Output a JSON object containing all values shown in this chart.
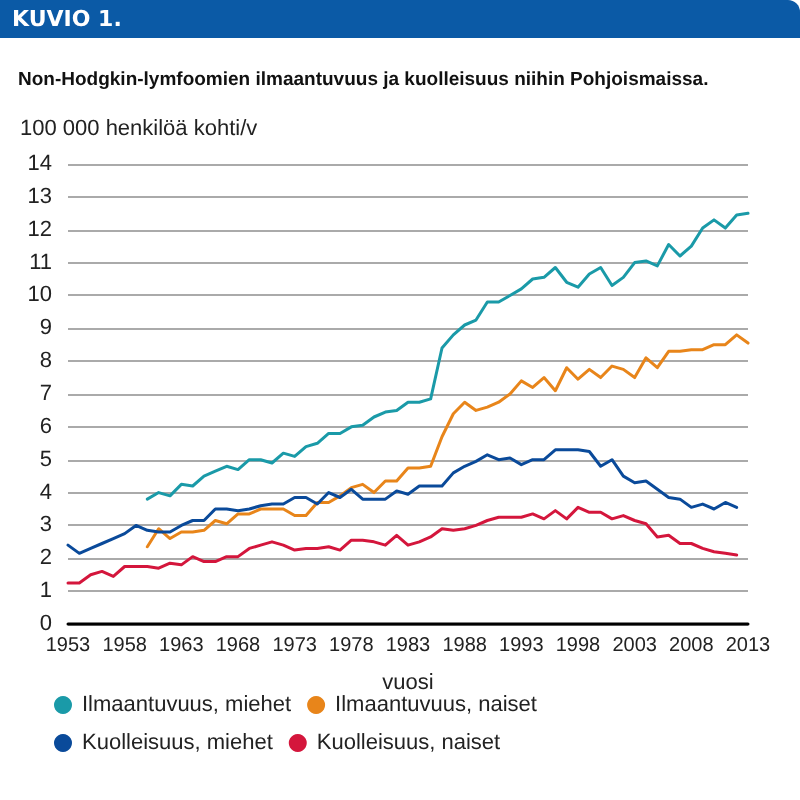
{
  "chart_data": {
    "type": "line",
    "title": "Non-Hodgkin-lymfoomien ilmaantuvuus ja kuolleisuus niihin Pohjoismaissa.",
    "annotations": [
      "KUVIO 1."
    ],
    "xlabel": "vuosi",
    "ylabel": "100 000 henkilöä kohti/v",
    "x": [
      1953,
      1954,
      1955,
      1956,
      1957,
      1958,
      1959,
      1960,
      1961,
      1962,
      1963,
      1964,
      1965,
      1966,
      1967,
      1968,
      1969,
      1970,
      1971,
      1972,
      1973,
      1974,
      1975,
      1976,
      1977,
      1978,
      1979,
      1980,
      1981,
      1982,
      1983,
      1984,
      1985,
      1986,
      1987,
      1988,
      1989,
      1990,
      1991,
      1992,
      1993,
      1994,
      1995,
      1996,
      1997,
      1998,
      1999,
      2000,
      2001,
      2002,
      2003,
      2004,
      2005,
      2006,
      2007,
      2008,
      2009,
      2010,
      2011,
      2012,
      2013
    ],
    "series": [
      {
        "name": "Ilmaantuvuus, miehet",
        "color": "#1a9aa8",
        "values": [
          null,
          null,
          null,
          null,
          null,
          null,
          null,
          3.8,
          4.0,
          3.9,
          4.25,
          4.2,
          4.5,
          4.65,
          4.8,
          4.7,
          5.0,
          5.0,
          4.9,
          5.2,
          5.1,
          5.4,
          5.5,
          5.8,
          5.8,
          6.0,
          6.05,
          6.3,
          6.45,
          6.5,
          6.75,
          6.75,
          6.85,
          8.4,
          8.8,
          9.1,
          9.25,
          9.8,
          9.8,
          10.0,
          10.2,
          10.5,
          10.55,
          10.85,
          10.4,
          10.25,
          10.65,
          10.85,
          10.3,
          10.55,
          11.0,
          11.05,
          10.9,
          11.55,
          11.2,
          11.5,
          12.05,
          12.3,
          12.05,
          12.45,
          12.5
        ]
      },
      {
        "name": "Ilmaantuvuus, naiset",
        "color": "#e8851a",
        "values": [
          null,
          null,
          null,
          null,
          null,
          null,
          null,
          2.35,
          2.9,
          2.6,
          2.8,
          2.8,
          2.85,
          3.15,
          3.05,
          3.35,
          3.35,
          3.5,
          3.5,
          3.5,
          3.3,
          3.3,
          3.7,
          3.7,
          3.9,
          4.15,
          4.25,
          4.0,
          4.35,
          4.35,
          4.75,
          4.75,
          4.8,
          5.7,
          6.4,
          6.75,
          6.5,
          6.6,
          6.75,
          7.0,
          7.4,
          7.2,
          7.5,
          7.1,
          7.8,
          7.45,
          7.75,
          7.5,
          7.85,
          7.75,
          7.5,
          8.1,
          7.8,
          8.3,
          8.3,
          8.35,
          8.35,
          8.5,
          8.5,
          8.8,
          8.55
        ]
      },
      {
        "name": "Kuolleisuus, miehet",
        "color": "#0a4a9a",
        "values": [
          2.4,
          2.15,
          2.3,
          2.45,
          2.6,
          2.75,
          3.0,
          2.85,
          2.8,
          2.8,
          3.0,
          3.15,
          3.15,
          3.5,
          3.5,
          3.45,
          3.5,
          3.6,
          3.65,
          3.65,
          3.85,
          3.85,
          3.65,
          4.0,
          3.85,
          4.1,
          3.8,
          3.8,
          3.8,
          4.05,
          3.95,
          4.2,
          4.2,
          4.2,
          4.6,
          4.8,
          4.95,
          5.15,
          5.0,
          5.05,
          4.85,
          5.0,
          5.0,
          5.3,
          5.3,
          5.3,
          5.25,
          4.8,
          5.0,
          4.5,
          4.3,
          4.35,
          4.1,
          3.85,
          3.8,
          3.55,
          3.65,
          3.5,
          3.7,
          3.55,
          null
        ]
      },
      {
        "name": "Kuolleisuus, naiset",
        "color": "#d4163c",
        "values": [
          1.25,
          1.25,
          1.5,
          1.6,
          1.45,
          1.75,
          1.75,
          1.75,
          1.7,
          1.85,
          1.8,
          2.05,
          1.9,
          1.9,
          2.05,
          2.05,
          2.3,
          2.4,
          2.5,
          2.4,
          2.25,
          2.3,
          2.3,
          2.35,
          2.25,
          2.55,
          2.55,
          2.5,
          2.4,
          2.7,
          2.4,
          2.5,
          2.65,
          2.9,
          2.85,
          2.9,
          3.0,
          3.15,
          3.25,
          3.25,
          3.25,
          3.35,
          3.2,
          3.45,
          3.2,
          3.55,
          3.4,
          3.4,
          3.2,
          3.3,
          3.15,
          3.05,
          2.65,
          2.7,
          2.45,
          2.45,
          2.3,
          2.2,
          2.15,
          2.1,
          null
        ]
      }
    ],
    "xlim": [
      1953,
      2013
    ],
    "xticks": [
      1953,
      1958,
      1963,
      1968,
      1973,
      1978,
      1983,
      1988,
      1993,
      1998,
      2003,
      2008,
      2013
    ],
    "ylim": [
      0,
      14
    ],
    "yticks": [
      0,
      1,
      2,
      3,
      4,
      5,
      6,
      7,
      8,
      9,
      10,
      11,
      12,
      13,
      14
    ],
    "grid": "y",
    "legend": "bottom",
    "marker": "none",
    "line_style": "solid"
  }
}
